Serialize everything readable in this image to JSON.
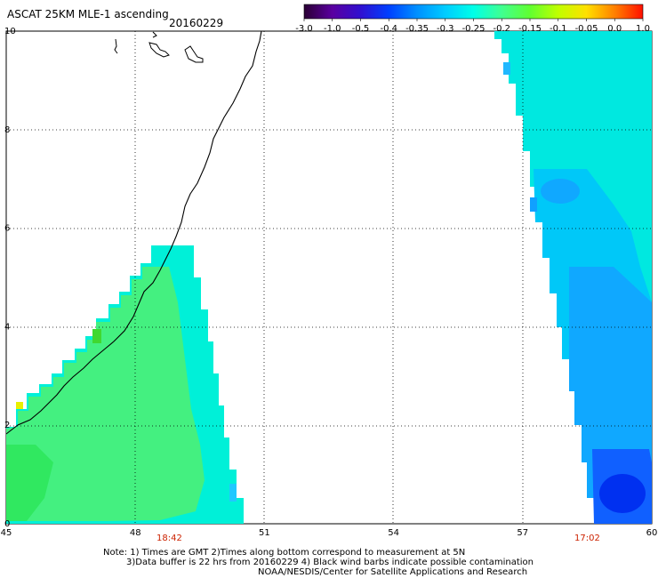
{
  "title": "ASCAT 25KM MLE-1 ascending",
  "date": "20160229",
  "colorbar": {
    "labels": [
      "-3.0",
      "-1.0",
      "-0.5",
      "-0.4",
      "-0.35",
      "-0.3",
      "-0.25",
      "-0.2",
      "-0.15",
      "-0.1",
      "-0.05",
      "0.0",
      "1.0"
    ],
    "colors": [
      "#2a0033",
      "#5a00a0",
      "#3010d0",
      "#0040ff",
      "#0090ff",
      "#00ccff",
      "#00ffe8",
      "#40ff90",
      "#60ff30",
      "#c0ff00",
      "#ffe000",
      "#ff8000",
      "#ff1000"
    ]
  },
  "axes": {
    "x_ticks": [
      "45",
      "48",
      "51",
      "54",
      "57",
      "60"
    ],
    "y_ticks": [
      "0",
      "2",
      "4",
      "6",
      "8",
      "10"
    ],
    "x_range": [
      45,
      60
    ],
    "y_range": [
      0,
      10
    ],
    "grid": "dotted"
  },
  "pass_times": [
    "18:42",
    "17:02"
  ],
  "notes": [
    "Note: 1) Times are GMT 2)Times along bottom correspond to measurement at 5N",
    "3)Data buffer is 22 hrs from 20160229 4) Black wind barbs indicate possible contamination",
    "NOAA/NESDIS/Center for Satellite Applications and Research"
  ]
}
